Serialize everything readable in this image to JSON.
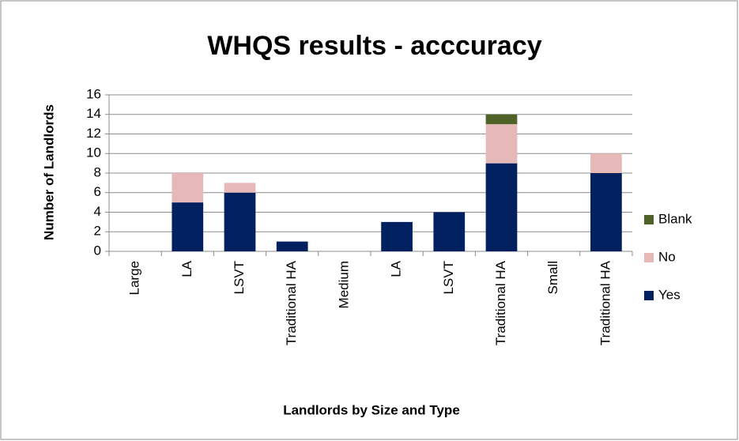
{
  "chart_data": {
    "type": "stacked_bar",
    "title": "WHQS results - acccuracy",
    "x_label": "Landlords by Size and Type",
    "y_label": "Number of Landlords",
    "categories": [
      "Large",
      "LA",
      "LSVT",
      "Traditional HA",
      "Medium",
      "LA",
      "LSVT",
      "Traditional HA",
      "Small",
      "Traditional HA"
    ],
    "series": [
      {
        "name": "Yes",
        "color": "#002060",
        "values": [
          null,
          5,
          6,
          1,
          null,
          3,
          4,
          9,
          null,
          8
        ]
      },
      {
        "name": "No",
        "color": "#e6b9b8",
        "values": [
          null,
          3,
          1,
          0,
          null,
          0,
          0,
          4,
          null,
          2
        ]
      },
      {
        "name": "Blank",
        "color": "#4f6228",
        "values": [
          null,
          0,
          0,
          0,
          null,
          0,
          0,
          1,
          null,
          0
        ]
      }
    ],
    "ylim": [
      0,
      16
    ],
    "yticks": [
      0,
      2,
      4,
      6,
      8,
      10,
      12,
      14,
      16
    ],
    "grid": true,
    "legend": "right"
  }
}
